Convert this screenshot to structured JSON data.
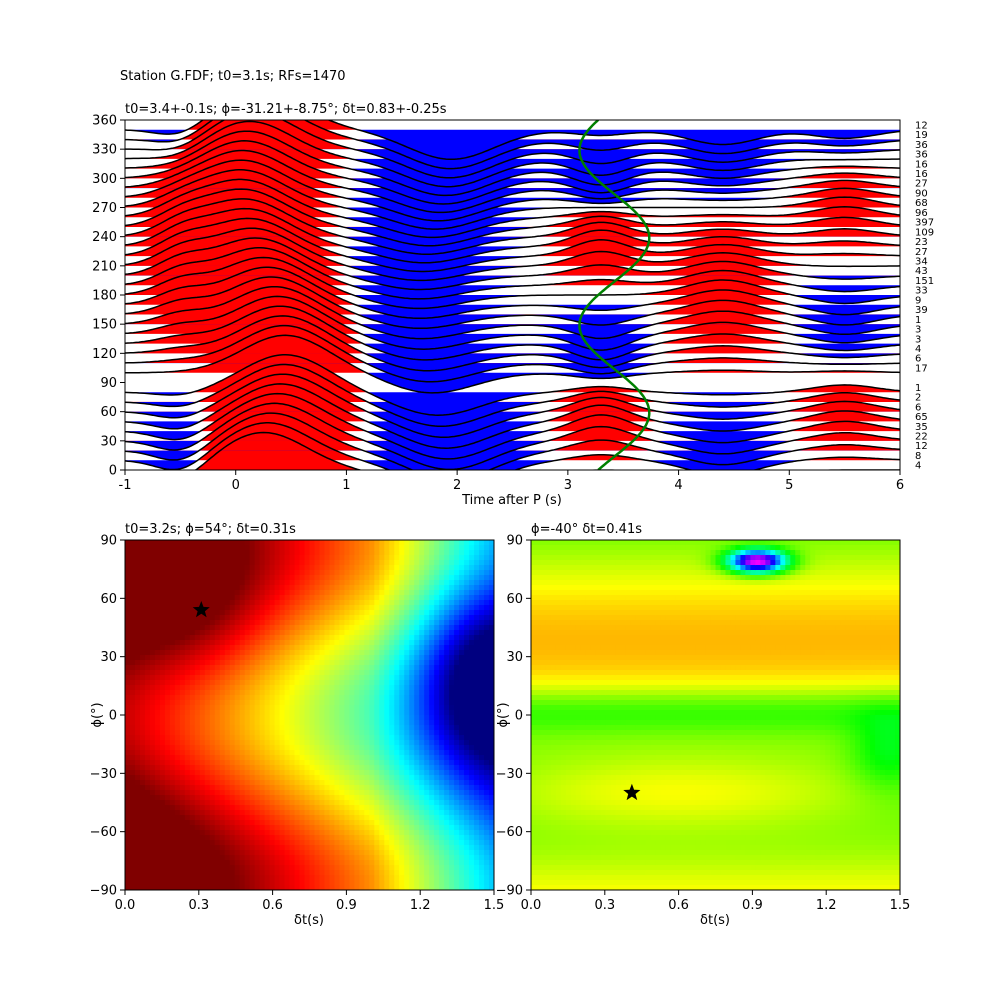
{
  "figure": {
    "suptitle": "Station G.FDF; t0=3.1s; RFs=1470"
  },
  "chart_data": [
    {
      "type": "line",
      "panel": "receiver-function-gather",
      "title": "t0=3.4+-0.1s; ϕ=-31.21+-8.75°; δt=0.83+-0.25s",
      "xlabel": "Time after P (s)",
      "ylabel": "",
      "xlim": [
        -1,
        6
      ],
      "ylim": [
        0,
        360
      ],
      "xticks": [
        -1,
        0,
        1,
        2,
        3,
        4,
        5,
        6
      ],
      "yticks": [
        0,
        30,
        60,
        90,
        120,
        150,
        180,
        210,
        240,
        270,
        300,
        330,
        360
      ],
      "trace_spacing_deg": 10,
      "trace_count_labels": [
        "4",
        "8",
        "12",
        "22",
        "35",
        "65",
        "6",
        "2",
        "1",
        "",
        "17",
        "6",
        "4",
        "3",
        "3",
        "1",
        "39",
        "9",
        "33",
        "151",
        "43",
        "34",
        "27",
        "23",
        "109",
        "397",
        "96",
        "68",
        "90",
        "27",
        "16",
        "16",
        "36",
        "36",
        "19",
        "12"
      ],
      "fill_colors": {
        "positive": "#ff0000",
        "negative": "#0000ff",
        "trace": "#000000"
      },
      "phase_curve": {
        "color": "#008000",
        "t0": 3.4,
        "dt": 0.83,
        "phi": -31.21
      },
      "grid": false
    },
    {
      "type": "heatmap",
      "panel": "energy-grid-search",
      "title": "t0=3.2s; ϕ=54°; δt=0.31s",
      "xlabel": "δt(s)",
      "ylabel": "ϕ(°)",
      "xlim": [
        0,
        1.5
      ],
      "ylim": [
        -90,
        90
      ],
      "xticks": [
        "0.0",
        "0.3",
        "0.6",
        "0.9",
        "1.2",
        "1.5"
      ],
      "yticks": [
        -90,
        -60,
        -30,
        0,
        30,
        60,
        90
      ],
      "colormap": "jet",
      "best_fit": {
        "dt": 0.31,
        "phi": 54
      },
      "marker_color": "#000000"
    },
    {
      "type": "heatmap",
      "panel": "cross-correlation-grid-search",
      "title": "ϕ=-40° δt=0.41s",
      "xlabel": "δt(s)",
      "ylabel": "ϕ(°)",
      "xlim": [
        0,
        1.5
      ],
      "ylim": [
        -90,
        90
      ],
      "xticks": [
        "0.0",
        "0.3",
        "0.6",
        "0.9",
        "1.2",
        "1.5"
      ],
      "yticks": [
        -90,
        -60,
        -30,
        0,
        30,
        60,
        90
      ],
      "colormap": "hsv",
      "best_fit": {
        "dt": 0.41,
        "phi": -40
      },
      "marker_color": "#000000"
    }
  ]
}
